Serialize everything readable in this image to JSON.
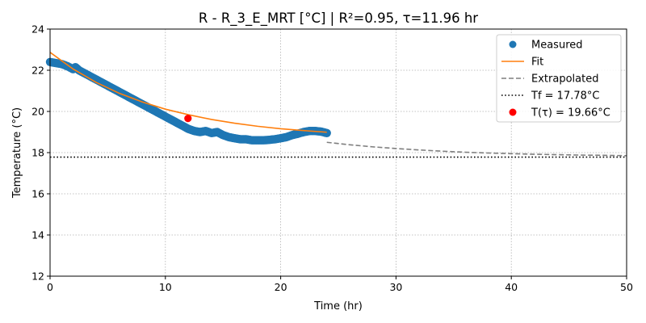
{
  "chart_data": {
    "type": "line",
    "title": "R - R_3_E_MRT  [°C] | R²=0.95, τ=11.96 hr",
    "xlabel": "Time (hr)",
    "ylabel": "Temperature (°C)",
    "xlim": [
      0,
      50
    ],
    "ylim": [
      12,
      24
    ],
    "x_ticks": [
      0,
      10,
      20,
      30,
      40,
      50
    ],
    "y_ticks": [
      12,
      14,
      16,
      18,
      20,
      22,
      24
    ],
    "grid": true,
    "legend_position": "top-right",
    "tf_value": 17.78,
    "tau_value": 11.96,
    "t_tau_value": 19.66,
    "series": [
      {
        "name": "Measured",
        "kind": "scatter",
        "color": "#1f77b4",
        "x": [
          0,
          0.5,
          1,
          1.5,
          2,
          2.2,
          2.5,
          3,
          3.5,
          4,
          4.5,
          5,
          5.5,
          6,
          6.5,
          7,
          7.5,
          8,
          8.5,
          9,
          9.5,
          10,
          10.5,
          11,
          11.5,
          12,
          12.5,
          13,
          13.5,
          14,
          14.5,
          15,
          15.5,
          16,
          16.5,
          17,
          17.5,
          18,
          18.5,
          19,
          19.5,
          20,
          20.5,
          21,
          21.5,
          22,
          22.5,
          23,
          23.5,
          24
        ],
        "y": [
          22.4,
          22.35,
          22.3,
          22.2,
          22.05,
          22.15,
          22.0,
          21.85,
          21.7,
          21.55,
          21.4,
          21.25,
          21.1,
          20.95,
          20.8,
          20.65,
          20.5,
          20.35,
          20.2,
          20.05,
          19.9,
          19.75,
          19.6,
          19.45,
          19.3,
          19.15,
          19.05,
          19.0,
          19.05,
          18.95,
          19.0,
          18.85,
          18.75,
          18.7,
          18.65,
          18.65,
          18.6,
          18.6,
          18.6,
          18.62,
          18.65,
          18.7,
          18.75,
          18.85,
          18.92,
          19.0,
          19.05,
          19.05,
          19.02,
          18.95
        ]
      },
      {
        "name": "Fit",
        "kind": "line",
        "color": "#ff7f0e",
        "x": [
          0,
          2,
          4,
          6,
          8,
          10,
          12,
          14,
          16,
          18,
          20,
          22,
          24
        ],
        "y": [
          22.87,
          22.06,
          21.41,
          20.88,
          20.46,
          20.11,
          19.84,
          19.61,
          19.43,
          19.28,
          19.16,
          19.07,
          18.99
        ]
      },
      {
        "name": "Extrapolated",
        "kind": "dashed",
        "color": "#7f7f7f",
        "x": [
          24,
          26,
          28,
          30,
          32,
          34,
          36,
          38,
          40,
          42,
          44,
          46,
          48,
          50
        ],
        "y": [
          18.5,
          18.38,
          18.28,
          18.2,
          18.13,
          18.07,
          18.02,
          17.98,
          17.95,
          17.92,
          17.9,
          17.88,
          17.87,
          17.85
        ]
      },
      {
        "name": "Tf = 17.78°C",
        "kind": "dotted-hline",
        "color": "#000000",
        "y": 17.78
      },
      {
        "name": "T(τ) = 19.66°C",
        "kind": "point",
        "color": "#ff0000",
        "x": 11.96,
        "y": 19.66
      }
    ]
  }
}
